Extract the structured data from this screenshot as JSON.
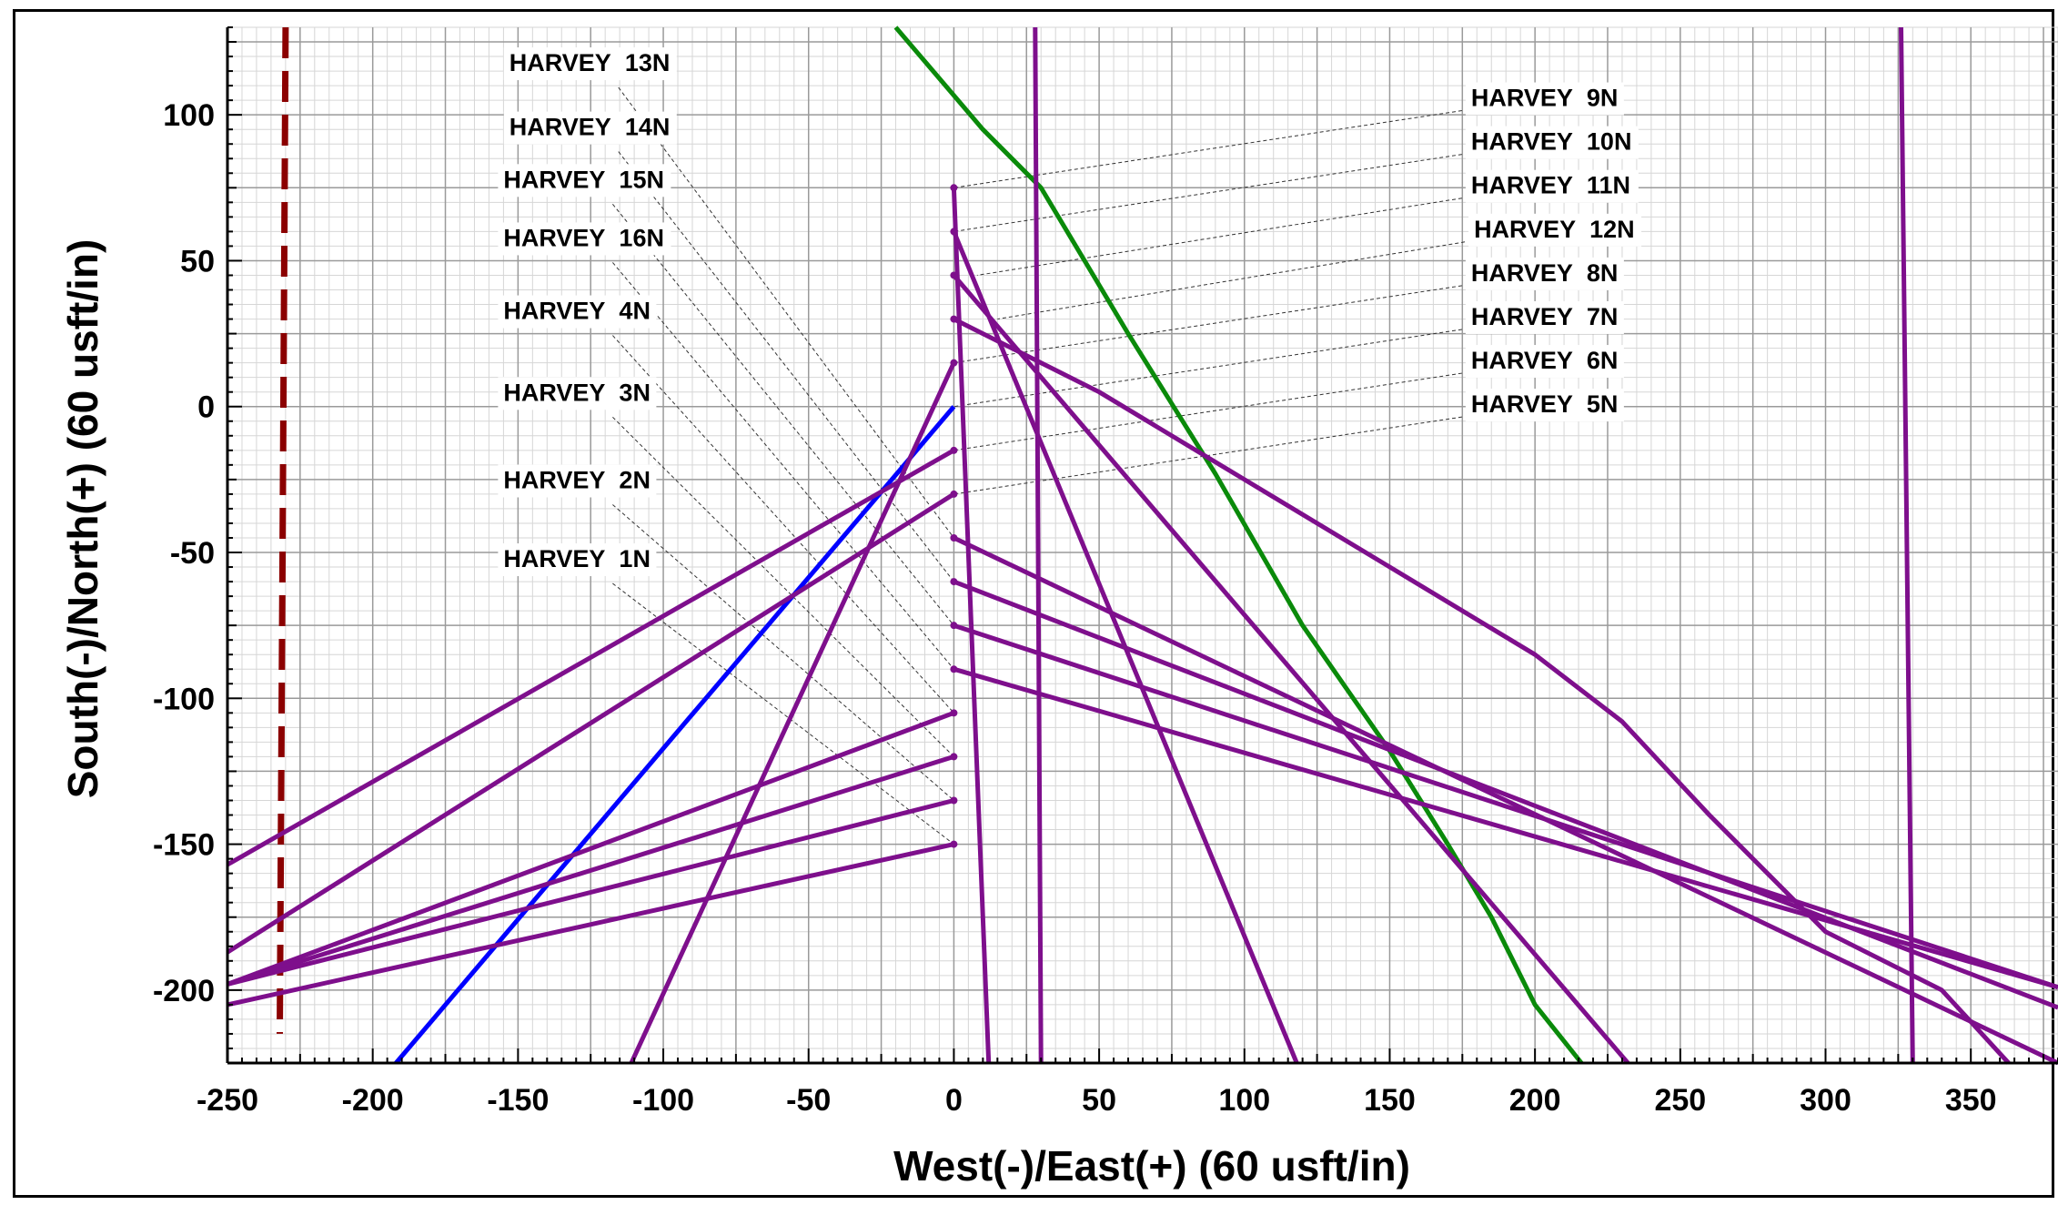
{
  "chart_data": {
    "type": "line",
    "xlabel": "West(-)/East(+) (60 usft/in)",
    "ylabel": "South(-)/North(+) (60 usft/in)",
    "xlim": [
      -250,
      380
    ],
    "ylim": [
      -225,
      130
    ],
    "xticks": [
      "-250",
      "-200",
      "-150",
      "-100",
      "-50",
      "0",
      "50",
      "100",
      "150",
      "200",
      "250",
      "300",
      "350"
    ],
    "yticks": [
      "100",
      "50",
      "0",
      "-50",
      "-100",
      "-150",
      "-200"
    ],
    "grid": true,
    "colors": {
      "wellbore": "#7e0f8c",
      "blue_line": "#0000ff",
      "green_line": "#0a8a0a",
      "dashed_line": "#8b0000"
    },
    "series": [
      {
        "color": "#0000ff",
        "style": "solid",
        "x": [
          0,
          -192
        ],
        "y": [
          0,
          -225
        ]
      },
      {
        "color": "#0a8a0a",
        "style": "solid",
        "x": [
          -20,
          10,
          30,
          60,
          90,
          120,
          150,
          170,
          185,
          200,
          216
        ],
        "y": [
          130,
          95,
          75,
          25,
          -23,
          -75,
          -118,
          -150,
          -175,
          -205,
          -225
        ]
      },
      {
        "color": "#8b0000",
        "style": "dashed",
        "x": [
          -230,
          -232
        ],
        "y": [
          130,
          -215
        ]
      },
      {
        "color": "#7e0f8c",
        "style": "solid",
        "x": [
          28,
          30
        ],
        "y": [
          130,
          -225
        ]
      },
      {
        "color": "#7e0f8c",
        "style": "solid",
        "x": [
          326,
          330
        ],
        "y": [
          130,
          -225
        ]
      },
      {
        "color": "#7e0f8c",
        "style": "solid",
        "x": [
          0,
          -250
        ],
        "y": [
          -15,
          -157
        ]
      },
      {
        "color": "#7e0f8c",
        "style": "solid",
        "x": [
          0,
          -250
        ],
        "y": [
          -30,
          -187
        ]
      },
      {
        "color": "#7e0f8c",
        "style": "solid",
        "x": [
          0,
          -250
        ],
        "y": [
          -105,
          -198
        ]
      },
      {
        "color": "#7e0f8c",
        "style": "solid",
        "x": [
          0,
          -250
        ],
        "y": [
          -120,
          -198
        ]
      },
      {
        "color": "#7e0f8c",
        "style": "solid",
        "x": [
          0,
          -250
        ],
        "y": [
          -135,
          -198
        ]
      },
      {
        "color": "#7e0f8c",
        "style": "solid",
        "x": [
          0,
          -250
        ],
        "y": [
          -150,
          -205
        ]
      },
      {
        "color": "#7e0f8c",
        "style": "solid",
        "x": [
          0,
          -111
        ],
        "y": [
          15,
          -225
        ]
      },
      {
        "color": "#7e0f8c",
        "style": "solid",
        "x": [
          0,
          12
        ],
        "y": [
          75,
          -225
        ]
      },
      {
        "color": "#7e0f8c",
        "style": "solid",
        "x": [
          0,
          118
        ],
        "y": [
          60,
          -225
        ]
      },
      {
        "color": "#7e0f8c",
        "style": "solid",
        "x": [
          0,
          232
        ],
        "y": [
          45,
          -225
        ]
      },
      {
        "color": "#7e0f8c",
        "style": "solid",
        "x": [
          0,
          50,
          100,
          150,
          200,
          230,
          260,
          300,
          340,
          363
        ],
        "y": [
          30,
          5,
          -25,
          -55,
          -85,
          -108,
          -140,
          -180,
          -200,
          -225
        ]
      },
      {
        "color": "#7e0f8c",
        "style": "solid",
        "x": [
          0,
          380
        ],
        "y": [
          -45,
          -225
        ]
      },
      {
        "color": "#7e0f8c",
        "style": "solid",
        "x": [
          0,
          380
        ],
        "y": [
          -60,
          -206
        ]
      },
      {
        "color": "#7e0f8c",
        "style": "solid",
        "x": [
          0,
          380
        ],
        "y": [
          -75,
          -199
        ]
      },
      {
        "color": "#7e0f8c",
        "style": "solid",
        "x": [
          0,
          380
        ],
        "y": [
          -90,
          -199
        ]
      }
    ],
    "labels": [
      {
        "text": "HARVEY 13N",
        "anchor": [
          -153,
          115
        ],
        "target": [
          0,
          -45
        ]
      },
      {
        "text": "HARVEY 14N",
        "anchor": [
          -153,
          93
        ],
        "target": [
          0,
          -60
        ]
      },
      {
        "text": "HARVEY 15N",
        "anchor": [
          -155,
          75
        ],
        "target": [
          0,
          -75
        ]
      },
      {
        "text": "HARVEY 16N",
        "anchor": [
          -155,
          55
        ],
        "target": [
          0,
          -90
        ]
      },
      {
        "text": "HARVEY 4N",
        "anchor": [
          -155,
          30
        ],
        "target": [
          0,
          -105
        ]
      },
      {
        "text": "HARVEY 3N",
        "anchor": [
          -155,
          2
        ],
        "target": [
          0,
          -120
        ]
      },
      {
        "text": "HARVEY 2N",
        "anchor": [
          -155,
          -28
        ],
        "target": [
          0,
          -135
        ]
      },
      {
        "text": "HARVEY 1N",
        "anchor": [
          -155,
          -55
        ],
        "target": [
          0,
          -150
        ]
      },
      {
        "text": "HARVEY 9N",
        "anchor": [
          178,
          103
        ],
        "target": [
          0,
          75
        ]
      },
      {
        "text": "HARVEY 10N",
        "anchor": [
          178,
          88
        ],
        "target": [
          0,
          60
        ]
      },
      {
        "text": "HARVEY 11N",
        "anchor": [
          178,
          73
        ],
        "target": [
          8,
          45
        ]
      },
      {
        "text": "HARVEY 12N",
        "anchor": [
          179,
          58
        ],
        "target": [
          15,
          30
        ]
      },
      {
        "text": "HARVEY 8N",
        "anchor": [
          178,
          43
        ],
        "target": [
          0,
          15
        ]
      },
      {
        "text": "HARVEY 7N",
        "anchor": [
          178,
          28
        ],
        "target": [
          0,
          0
        ]
      },
      {
        "text": "HARVEY 6N",
        "anchor": [
          178,
          13
        ],
        "target": [
          0,
          -15
        ]
      },
      {
        "text": "HARVEY 5N",
        "anchor": [
          178,
          -2
        ],
        "target": [
          0,
          -30
        ]
      }
    ]
  }
}
